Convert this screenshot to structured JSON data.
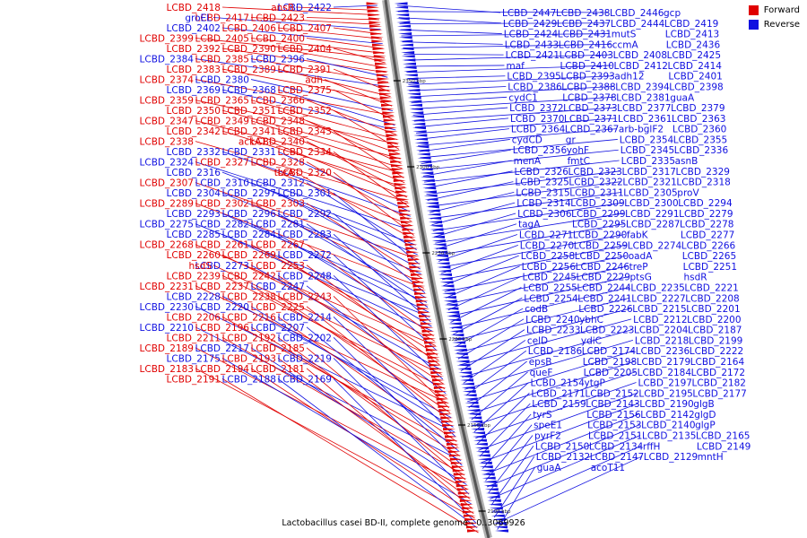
{
  "legend": {
    "forward": {
      "label": "Forward",
      "color": "#e00000"
    },
    "reverse": {
      "label": "Reverse",
      "color": "#1010e0"
    }
  },
  "caption": "Lactobacillus casei BD-II, complete genome - 0..3069926",
  "ticks": [
    "2350 kbp",
    "2300 kbp",
    "2250 kbp",
    "2200 kbp",
    "2150 kbp",
    "2100 kbp"
  ],
  "left_labels": [
    {
      "t": "LCBD_2422",
      "s": "r"
    },
    {
      "t": "ansB",
      "s": "f"
    },
    {
      "t": "LCBD_2418",
      "s": "f"
    },
    {
      "t": "LCBD_2423",
      "s": "f"
    },
    {
      "t": "LCBD_2417",
      "s": "f"
    },
    {
      "t": "groEL",
      "s": "r"
    },
    {
      "t": "LCBD_2407",
      "s": "f"
    },
    {
      "t": "LCBD_2406",
      "s": "f"
    },
    {
      "t": "LCBD_2402",
      "s": "r"
    },
    {
      "t": "LCBD_2400",
      "s": "f"
    },
    {
      "t": "LCBD_2405",
      "s": "f"
    },
    {
      "t": "LCBD_2399",
      "s": "f"
    },
    {
      "t": "LCBD_2404",
      "s": "f"
    },
    {
      "t": "LCBD_2390",
      "s": "f"
    },
    {
      "t": "LCBD_2392",
      "s": "f"
    },
    {
      "t": "LCBD_2396",
      "s": "r"
    },
    {
      "t": "LCBD_2385",
      "s": "f"
    },
    {
      "t": "LCBD_2384",
      "s": "r"
    },
    {
      "t": "LCBD_2391",
      "s": "f"
    },
    {
      "t": "LCBD_2389",
      "s": "f"
    },
    {
      "t": "LCBD_2383",
      "s": "f"
    },
    {
      "t": "adh",
      "s": "f"
    },
    {
      "t": "LCBD_2380",
      "s": "r"
    },
    {
      "t": "LCBD_2374",
      "s": "f"
    },
    {
      "t": "LCBD_2375",
      "s": "f"
    },
    {
      "t": "LCBD_2368",
      "s": "r"
    },
    {
      "t": "LCBD_2369",
      "s": "r"
    },
    {
      "t": "LCBD_2366",
      "s": "f"
    },
    {
      "t": "LCBD_2365",
      "s": "f"
    },
    {
      "t": "LCBD_2359",
      "s": "f"
    },
    {
      "t": "LCBD_2352",
      "s": "f"
    },
    {
      "t": "LCBD_2351",
      "s": "f"
    },
    {
      "t": "LCBD_2350",
      "s": "f"
    },
    {
      "t": "LCBD_2348",
      "s": "f"
    },
    {
      "t": "LCBD_2349",
      "s": "f"
    },
    {
      "t": "LCBD_2347",
      "s": "f"
    },
    {
      "t": "LCBD_2343",
      "s": "f"
    },
    {
      "t": "LCBD_2341",
      "s": "f"
    },
    {
      "t": "LCBD_2342",
      "s": "f"
    },
    {
      "t": "LCBD_2340",
      "s": "f"
    },
    {
      "t": "ackA1",
      "s": "f"
    },
    {
      "t": "LCBD_2338",
      "s": "f"
    },
    {
      "t": "LCBD_2334",
      "s": "f"
    },
    {
      "t": "LCBD_2331",
      "s": "r"
    },
    {
      "t": "LCBD_2332",
      "s": "r"
    },
    {
      "t": "LCBD_2328",
      "s": "f"
    },
    {
      "t": "LCBD_2327",
      "s": "f"
    },
    {
      "t": "LCBD_2324",
      "s": "r"
    },
    {
      "t": "LCBD_2320",
      "s": "f"
    },
    {
      "t": "thrA",
      "s": "f"
    },
    {
      "t": "LCBD_2316",
      "s": "r"
    },
    {
      "t": "LCBD_2312",
      "s": "r"
    },
    {
      "t": "LCBD_2310",
      "s": "r"
    },
    {
      "t": "LCBD_2307",
      "s": "f"
    },
    {
      "t": "LCBD_2301",
      "s": "r"
    },
    {
      "t": "LCBD_2297",
      "s": "r"
    },
    {
      "t": "LCBD_2304",
      "s": "r"
    },
    {
      "t": "LCBD_2303",
      "s": "f"
    },
    {
      "t": "LCBD_2302",
      "s": "f"
    },
    {
      "t": "LCBD_2289",
      "s": "f"
    },
    {
      "t": "LCBD_2292",
      "s": "r"
    },
    {
      "t": "LCBD_2296",
      "s": "r"
    },
    {
      "t": "LCBD_2293",
      "s": "r"
    },
    {
      "t": "LCBD_2281",
      "s": "r"
    },
    {
      "t": "LCBD_2282",
      "s": "r"
    },
    {
      "t": "LCBD_2275",
      "s": "r"
    },
    {
      "t": "LCBD_2283",
      "s": "r"
    },
    {
      "t": "LCBD_2284",
      "s": "r"
    },
    {
      "t": "LCBD_2285",
      "s": "r"
    },
    {
      "t": "LCBD_2267",
      "s": "f"
    },
    {
      "t": "LCBD_2261",
      "s": "f"
    },
    {
      "t": "LCBD_2268",
      "s": "f"
    },
    {
      "t": "LCBD_2272",
      "s": "r"
    },
    {
      "t": "LCBD_2269",
      "s": "f"
    },
    {
      "t": "LCBD_2260",
      "s": "f"
    },
    {
      "t": "LCBD_2253",
      "s": "f"
    },
    {
      "t": "LCBD_2273",
      "s": "r"
    },
    {
      "t": "hsdS",
      "s": "f"
    },
    {
      "t": "LCBD_2248",
      "s": "r"
    },
    {
      "t": "LCBD_2242",
      "s": "f"
    },
    {
      "t": "LCBD_2239",
      "s": "f"
    },
    {
      "t": "LCBD_2247",
      "s": "r"
    },
    {
      "t": "LCBD_2237",
      "s": "f"
    },
    {
      "t": "LCBD_2231",
      "s": "f"
    },
    {
      "t": "LCBD_2243",
      "s": "f"
    },
    {
      "t": "LCBD_2238",
      "s": "f"
    },
    {
      "t": "LCBD_2228",
      "s": "r"
    },
    {
      "t": "LCBD_2225",
      "s": "f"
    },
    {
      "t": "LCBD_2220",
      "s": "r"
    },
    {
      "t": "LCBD_2230",
      "s": "r"
    },
    {
      "t": "LCBD_2214",
      "s": "r"
    },
    {
      "t": "LCBD_2216",
      "s": "f"
    },
    {
      "t": "LCBD_2206",
      "s": "f"
    },
    {
      "t": "LCBD_2207",
      "s": "r"
    },
    {
      "t": "LCBD_2196",
      "s": "f"
    },
    {
      "t": "LCBD_2210",
      "s": "r"
    },
    {
      "t": "LCBD_2202",
      "s": "r"
    },
    {
      "t": "LCBD_2192",
      "s": "f"
    },
    {
      "t": "LCBD_2211",
      "s": "f"
    },
    {
      "t": "LCBD_2185",
      "s": "f"
    },
    {
      "t": "LCBD_2217",
      "s": "r"
    },
    {
      "t": "LCBD_2189",
      "s": "f"
    },
    {
      "t": "LCBD_2219",
      "s": "r"
    },
    {
      "t": "LCBD_2193",
      "s": "f"
    },
    {
      "t": "LCBD_2175",
      "s": "r"
    },
    {
      "t": "LCBD_2181",
      "s": "f"
    },
    {
      "t": "LCBD_2194",
      "s": "f"
    },
    {
      "t": "LCBD_2183",
      "s": "f"
    },
    {
      "t": "LCBD_2169",
      "s": "r"
    },
    {
      "t": "LCBD_2188",
      "s": "r"
    },
    {
      "t": "LCBD_2191",
      "s": "f"
    }
  ],
  "right_labels": [
    {
      "t": "LCBD_2447",
      "s": "r"
    },
    {
      "t": "LCBD_2438",
      "s": "r"
    },
    {
      "t": "LCBD_2446",
      "s": "r"
    },
    {
      "t": "gcp",
      "s": "r"
    },
    {
      "t": "LCBD_2429",
      "s": "r"
    },
    {
      "t": "LCBD_2437",
      "s": "r"
    },
    {
      "t": "LCBD_2444",
      "s": "r"
    },
    {
      "t": "LCBD_2419",
      "s": "r"
    },
    {
      "t": "LCBD_2424",
      "s": "r"
    },
    {
      "t": "LCBD_2431",
      "s": "r"
    },
    {
      "t": "mutS",
      "s": "r"
    },
    {
      "t": "LCBD_2413",
      "s": "r"
    },
    {
      "t": "LCBD_2433",
      "s": "r"
    },
    {
      "t": "LCBD_2416",
      "s": "r"
    },
    {
      "t": "ccmA",
      "s": "r"
    },
    {
      "t": "LCBD_2436",
      "s": "r"
    },
    {
      "t": "LCBD_2421",
      "s": "r"
    },
    {
      "t": "LCBD_2403",
      "s": "r"
    },
    {
      "t": "LCBD_2408",
      "s": "r"
    },
    {
      "t": "LCBD_2425",
      "s": "r"
    },
    {
      "t": "maf",
      "s": "r"
    },
    {
      "t": "LCBD_2410",
      "s": "r"
    },
    {
      "t": "LCBD_2412",
      "s": "r"
    },
    {
      "t": "LCBD_2414",
      "s": "r"
    },
    {
      "t": "LCBD_2395",
      "s": "r"
    },
    {
      "t": "LCBD_2393",
      "s": "r"
    },
    {
      "t": "adh12",
      "s": "r"
    },
    {
      "t": "LCBD_2401",
      "s": "r"
    },
    {
      "t": "LCBD_2386",
      "s": "r"
    },
    {
      "t": "LCBD_2388",
      "s": "r"
    },
    {
      "t": "LCBD_2394",
      "s": "r"
    },
    {
      "t": "LCBD_2398",
      "s": "r"
    },
    {
      "t": "cydC1",
      "s": "r"
    },
    {
      "t": "LCBD_2378",
      "s": "r"
    },
    {
      "t": "LCBD_2381",
      "s": "r"
    },
    {
      "t": "guaA",
      "s": "r"
    },
    {
      "t": "LCBD_2372",
      "s": "r"
    },
    {
      "t": "LCBD_2373",
      "s": "r"
    },
    {
      "t": "LCBD_2377",
      "s": "r"
    },
    {
      "t": "LCBD_2379",
      "s": "r"
    },
    {
      "t": "LCBD_2370",
      "s": "r"
    },
    {
      "t": "LCBD_2371",
      "s": "r"
    },
    {
      "t": "LCBD_2361",
      "s": "r"
    },
    {
      "t": "LCBD_2363",
      "s": "r"
    },
    {
      "t": "LCBD_2364",
      "s": "r"
    },
    {
      "t": "LCBD_2367",
      "s": "r"
    },
    {
      "t": "arb-bglF2",
      "s": "r"
    },
    {
      "t": "LCBD_2360",
      "s": "r"
    },
    {
      "t": "cydCD",
      "s": "r"
    },
    {
      "t": "gr",
      "s": "r"
    },
    {
      "t": "LCBD_2354",
      "s": "r"
    },
    {
      "t": "LCBD_2355",
      "s": "r"
    },
    {
      "t": "LCBD_2356",
      "s": "r"
    },
    {
      "t": "yohF",
      "s": "r"
    },
    {
      "t": "LCBD_2345",
      "s": "r"
    },
    {
      "t": "LCBD_2336",
      "s": "r"
    },
    {
      "t": "menA",
      "s": "r"
    },
    {
      "t": "fmtC",
      "s": "r"
    },
    {
      "t": "LCBD_2335",
      "s": "r"
    },
    {
      "t": "asnB",
      "s": "r"
    },
    {
      "t": "LCBD_2326",
      "s": "r"
    },
    {
      "t": "LCBD_2323",
      "s": "r"
    },
    {
      "t": "LCBD_2317",
      "s": "r"
    },
    {
      "t": "LCBD_2329",
      "s": "r"
    },
    {
      "t": "LCBD_2325",
      "s": "r"
    },
    {
      "t": "LCBD_2322",
      "s": "r"
    },
    {
      "t": "LCBD_2321",
      "s": "r"
    },
    {
      "t": "LCBD_2318",
      "s": "r"
    },
    {
      "t": "LCBD_2315",
      "s": "r"
    },
    {
      "t": "LCBD_2311",
      "s": "r"
    },
    {
      "t": "LCBD_2305",
      "s": "r"
    },
    {
      "t": "proV",
      "s": "r"
    },
    {
      "t": "LCBD_2314",
      "s": "r"
    },
    {
      "t": "LCBD_2309",
      "s": "r"
    },
    {
      "t": "LCBD_2300",
      "s": "r"
    },
    {
      "t": "LCBD_2294",
      "s": "r"
    },
    {
      "t": "LCBD_2306",
      "s": "r"
    },
    {
      "t": "LCBD_2299",
      "s": "r"
    },
    {
      "t": "LCBD_2291",
      "s": "r"
    },
    {
      "t": "LCBD_2279",
      "s": "r"
    },
    {
      "t": "tagA",
      "s": "r"
    },
    {
      "t": "LCBD_2295",
      "s": "r"
    },
    {
      "t": "LCBD_2287",
      "s": "r"
    },
    {
      "t": "LCBD_2278",
      "s": "r"
    },
    {
      "t": "LCBD_2271",
      "s": "r"
    },
    {
      "t": "LCBD_2290",
      "s": "r"
    },
    {
      "t": "fabK",
      "s": "r"
    },
    {
      "t": "LCBD_2277",
      "s": "r"
    },
    {
      "t": "LCBD_2270",
      "s": "r"
    },
    {
      "t": "LCBD_2259",
      "s": "r"
    },
    {
      "t": "LCBD_2274",
      "s": "r"
    },
    {
      "t": "LCBD_2266",
      "s": "r"
    },
    {
      "t": "LCBD_2258",
      "s": "r"
    },
    {
      "t": "LCBD_2250",
      "s": "r"
    },
    {
      "t": "oadA",
      "s": "r"
    },
    {
      "t": "LCBD_2265",
      "s": "r"
    },
    {
      "t": "LCBD_2256",
      "s": "r"
    },
    {
      "t": "LCBD_2246",
      "s": "r"
    },
    {
      "t": "treP",
      "s": "r"
    },
    {
      "t": "LCBD_2251",
      "s": "r"
    },
    {
      "t": "LCBD_2245",
      "s": "r"
    },
    {
      "t": "LCBD_2229",
      "s": "r"
    },
    {
      "t": "ptsG",
      "s": "r"
    },
    {
      "t": "hsdR",
      "s": "r"
    },
    {
      "t": "LCBD_2255",
      "s": "r"
    },
    {
      "t": "LCBD_2244",
      "s": "r"
    },
    {
      "t": "LCBD_2235",
      "s": "r"
    },
    {
      "t": "LCBD_2221",
      "s": "r"
    },
    {
      "t": "LCBD_2254",
      "s": "r"
    },
    {
      "t": "LCBD_2241",
      "s": "r"
    },
    {
      "t": "LCBD_2227",
      "s": "r"
    },
    {
      "t": "LCBD_2208",
      "s": "r"
    },
    {
      "t": "codB",
      "s": "r"
    },
    {
      "t": "LCBD_2226",
      "s": "r"
    },
    {
      "t": "LCBD_2215",
      "s": "r"
    },
    {
      "t": "LCBD_2201",
      "s": "r"
    },
    {
      "t": "LCBD_2240",
      "s": "r"
    },
    {
      "t": "ybhC",
      "s": "r"
    },
    {
      "t": "LCBD_2212",
      "s": "r"
    },
    {
      "t": "LCBD_2200",
      "s": "r"
    },
    {
      "t": "LCBD_2233",
      "s": "r"
    },
    {
      "t": "LCBD_2223",
      "s": "r"
    },
    {
      "t": "LCBD_2204",
      "s": "r"
    },
    {
      "t": "LCBD_2187",
      "s": "r"
    },
    {
      "t": "celD",
      "s": "r"
    },
    {
      "t": "ydiC",
      "s": "r"
    },
    {
      "t": "LCBD_2218",
      "s": "r"
    },
    {
      "t": "LCBD_2199",
      "s": "r"
    },
    {
      "t": "LCBD_2186",
      "s": "r"
    },
    {
      "t": "LCBD_2174",
      "s": "r"
    },
    {
      "t": "LCBD_2236",
      "s": "r"
    },
    {
      "t": "LCBD_2222",
      "s": "r"
    },
    {
      "t": "epsB",
      "s": "r"
    },
    {
      "t": "LCBD_2198",
      "s": "r"
    },
    {
      "t": "LCBD_2179",
      "s": "r"
    },
    {
      "t": "LCBD_2164",
      "s": "r"
    },
    {
      "t": "queF",
      "s": "r"
    },
    {
      "t": "LCBD_2205",
      "s": "r"
    },
    {
      "t": "LCBD_2184",
      "s": "r"
    },
    {
      "t": "LCBD_2172",
      "s": "r"
    },
    {
      "t": "LCBD_2154",
      "s": "r"
    },
    {
      "t": "ytgP",
      "s": "r"
    },
    {
      "t": "LCBD_2197",
      "s": "r"
    },
    {
      "t": "LCBD_2182",
      "s": "r"
    },
    {
      "t": "LCBD_2171",
      "s": "r"
    },
    {
      "t": "LCBD_2152",
      "s": "r"
    },
    {
      "t": "LCBD_2195",
      "s": "r"
    },
    {
      "t": "LCBD_2177",
      "s": "r"
    },
    {
      "t": "LCBD_2159",
      "s": "r"
    },
    {
      "t": "LCBD_2143",
      "s": "r"
    },
    {
      "t": "LCBD_2190",
      "s": "r"
    },
    {
      "t": "glgB",
      "s": "r"
    },
    {
      "t": "tyrS",
      "s": "r"
    },
    {
      "t": "LCBD_2156",
      "s": "r"
    },
    {
      "t": "LCBD_2142",
      "s": "r"
    },
    {
      "t": "glgD",
      "s": "r"
    },
    {
      "t": "speE1",
      "s": "r"
    },
    {
      "t": "LCBD_2153",
      "s": "r"
    },
    {
      "t": "LCBD_2140",
      "s": "r"
    },
    {
      "t": "glgP",
      "s": "r"
    },
    {
      "t": "pyrF2",
      "s": "r"
    },
    {
      "t": "LCBD_2151",
      "s": "r"
    },
    {
      "t": "LCBD_2135",
      "s": "r"
    },
    {
      "t": "LCBD_2165",
      "s": "r"
    },
    {
      "t": "LCBD_2150",
      "s": "r"
    },
    {
      "t": "LCBD_2134",
      "s": "r"
    },
    {
      "t": "rffH",
      "s": "r"
    },
    {
      "t": "LCBD_2149",
      "s": "r"
    },
    {
      "t": "LCBD_2132",
      "s": "r"
    },
    {
      "t": "LCBD_2147",
      "s": "r"
    },
    {
      "t": "LCBD_2129",
      "s": "r"
    },
    {
      "t": "mntH",
      "s": "r"
    },
    {
      "t": "guaA",
      "s": "r"
    },
    {
      "t": "acoT11",
      "s": "r"
    }
  ]
}
